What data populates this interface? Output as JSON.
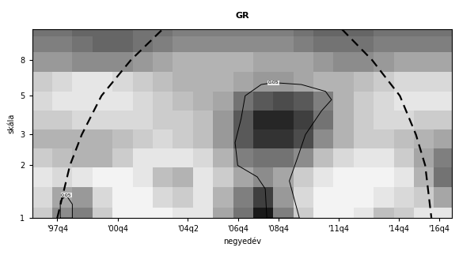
{
  "chart_data": {
    "type": "heatmap",
    "title": "GR",
    "x_label": "negyedév",
    "y_label": "skála",
    "log": "y",
    "xlim": [
      1996.5,
      2017.4
    ],
    "xticks": [
      {
        "value": 1997.75,
        "label": "'97q4"
      },
      {
        "value": 2000.75,
        "label": "'00q4"
      },
      {
        "value": 2004.25,
        "label": "'04q2"
      },
      {
        "value": 2006.75,
        "label": "'06q4"
      },
      {
        "value": 2008.75,
        "label": "'08q4"
      },
      {
        "value": 2011.75,
        "label": "'11q4"
      },
      {
        "value": 2014.75,
        "label": "'14q4"
      },
      {
        "value": 2016.75,
        "label": "'16q4"
      }
    ],
    "ylim": [
      1,
      12
    ],
    "yticks": [
      1,
      2,
      3,
      5,
      8
    ],
    "zlim": [
      0,
      1
    ],
    "x": [
      1997,
      1998,
      1999,
      2000,
      2001,
      2002,
      2003,
      2004,
      2005,
      2006,
      2007,
      2008,
      2009,
      2010,
      2011,
      2012,
      2013,
      2014,
      2015,
      2016,
      2017
    ],
    "y": [
      1.0,
      1.3,
      1.7,
      2.2,
      2.8,
      3.6,
      4.6,
      6,
      7.7,
      10,
      12
    ],
    "cells": [
      [
        0.2,
        0.45,
        0.5,
        0.2,
        0.05,
        0.05,
        0.05,
        0.1,
        0.1,
        0.35,
        0.55,
        0.9,
        0.5,
        0.2,
        0.05,
        0.05,
        0.1,
        0.25,
        0.2,
        0.1,
        0.1
      ],
      [
        0.15,
        0.35,
        0.4,
        0.15,
        0.05,
        0.05,
        0.15,
        0.2,
        0.1,
        0.3,
        0.5,
        0.75,
        0.4,
        0.15,
        0.05,
        0.05,
        0.05,
        0.1,
        0.15,
        0.2,
        0.35
      ],
      [
        0.1,
        0.15,
        0.1,
        0.05,
        0.05,
        0.1,
        0.25,
        0.3,
        0.1,
        0.2,
        0.35,
        0.45,
        0.35,
        0.2,
        0.1,
        0.05,
        0.05,
        0.05,
        0.1,
        0.3,
        0.55
      ],
      [
        0.2,
        0.25,
        0.3,
        0.3,
        0.2,
        0.1,
        0.1,
        0.1,
        0.15,
        0.3,
        0.5,
        0.55,
        0.55,
        0.45,
        0.25,
        0.15,
        0.1,
        0.1,
        0.2,
        0.35,
        0.5
      ],
      [
        0.3,
        0.3,
        0.3,
        0.3,
        0.25,
        0.2,
        0.15,
        0.2,
        0.25,
        0.4,
        0.65,
        0.8,
        0.8,
        0.7,
        0.45,
        0.3,
        0.2,
        0.2,
        0.25,
        0.3,
        0.35
      ],
      [
        0.2,
        0.2,
        0.15,
        0.15,
        0.15,
        0.15,
        0.2,
        0.2,
        0.25,
        0.4,
        0.65,
        0.85,
        0.85,
        0.75,
        0.55,
        0.3,
        0.2,
        0.15,
        0.15,
        0.2,
        0.2
      ],
      [
        0.15,
        0.1,
        0.1,
        0.1,
        0.1,
        0.15,
        0.2,
        0.25,
        0.3,
        0.35,
        0.55,
        0.65,
        0.7,
        0.65,
        0.5,
        0.3,
        0.2,
        0.15,
        0.1,
        0.1,
        0.1
      ],
      [
        0.2,
        0.15,
        0.1,
        0.1,
        0.15,
        0.2,
        0.25,
        0.3,
        0.3,
        0.3,
        0.35,
        0.4,
        0.4,
        0.35,
        0.3,
        0.3,
        0.25,
        0.2,
        0.15,
        0.15,
        0.15
      ],
      [
        0.4,
        0.4,
        0.45,
        0.45,
        0.45,
        0.4,
        0.35,
        0.3,
        0.3,
        0.3,
        0.3,
        0.35,
        0.35,
        0.35,
        0.4,
        0.45,
        0.45,
        0.4,
        0.35,
        0.35,
        0.35
      ],
      [
        0.5,
        0.5,
        0.55,
        0.6,
        0.6,
        0.55,
        0.5,
        0.45,
        0.45,
        0.45,
        0.45,
        0.45,
        0.45,
        0.5,
        0.55,
        0.55,
        0.55,
        0.5,
        0.5,
        0.5,
        0.5
      ],
      [
        0.55,
        0.55,
        0.6,
        0.6,
        0.6,
        0.55,
        0.55,
        0.5,
        0.5,
        0.5,
        0.5,
        0.5,
        0.5,
        0.55,
        0.6,
        0.6,
        0.6,
        0.55,
        0.55,
        0.55,
        0.55
      ]
    ],
    "contours": [
      {
        "label": "0.05",
        "x": [
          2008.18,
          2008.1,
          2007.7,
          2006.73,
          2006.6,
          2006.9,
          2007.1,
          2007.9,
          2008.5,
          2009.9,
          2011.1,
          2011.4,
          2010.9,
          2010.1,
          2009.7,
          2009.3,
          2009.8
        ],
        "y": [
          1.0,
          1.47,
          1.72,
          2.0,
          2.7,
          3.7,
          5.0,
          5.8,
          5.95,
          5.8,
          5.3,
          4.75,
          4.1,
          3.0,
          2.2,
          1.63,
          1.0
        ]
      },
      {
        "label": "0.05",
        "x": [
          1997.9,
          1997.9,
          1998.2,
          1998.5,
          1998.5
        ],
        "y": [
          1.0,
          1.25,
          1.35,
          1.2,
          1.0
        ]
      }
    ],
    "cone_of_influence": [
      {
        "x": [
          1997.75,
          1998.38,
          1998.97,
          1999.95,
          2001.41,
          2002.99
        ],
        "y": [
          1,
          2,
          3,
          5,
          8,
          12
        ]
      },
      {
        "x": [
          2011.92,
          2013.42,
          2014.8,
          2015.6,
          2016.06,
          2016.37
        ],
        "y": [
          12,
          8,
          5,
          3,
          2,
          1
        ]
      }
    ]
  }
}
